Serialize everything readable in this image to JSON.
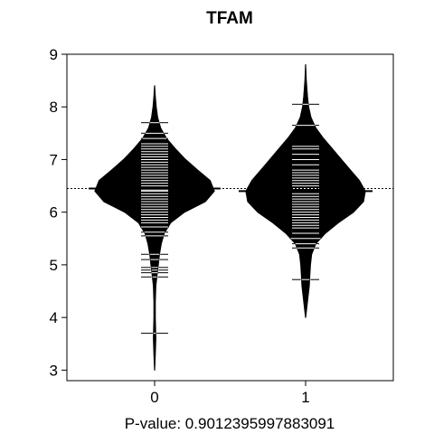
{
  "chart_data": {
    "type": "beanplot",
    "title": "TFAM",
    "xlabel": "P-value: 0.9012395997883091",
    "ylabel": "",
    "categories": [
      "0",
      "1"
    ],
    "ylim": [
      2.8,
      9.0
    ],
    "yticks": [
      3,
      4,
      5,
      6,
      7,
      8,
      9
    ],
    "overall_mean": 6.45,
    "colors": {
      "bean": "#000000",
      "lines": "#ffffff",
      "background": "#ffffff"
    },
    "series": [
      {
        "category": "0",
        "mean": 6.45,
        "density": [
          [
            3.0,
            0.0
          ],
          [
            3.3,
            0.01
          ],
          [
            3.6,
            0.02
          ],
          [
            3.8,
            0.015
          ],
          [
            4.0,
            0.01
          ],
          [
            4.3,
            0.01
          ],
          [
            4.6,
            0.02
          ],
          [
            4.8,
            0.04
          ],
          [
            5.0,
            0.06
          ],
          [
            5.2,
            0.08
          ],
          [
            5.4,
            0.11
          ],
          [
            5.6,
            0.16
          ],
          [
            5.8,
            0.27
          ],
          [
            6.0,
            0.5
          ],
          [
            6.2,
            0.85
          ],
          [
            6.4,
            1.0
          ],
          [
            6.6,
            0.93
          ],
          [
            6.8,
            0.72
          ],
          [
            7.0,
            0.52
          ],
          [
            7.2,
            0.35
          ],
          [
            7.4,
            0.2
          ],
          [
            7.6,
            0.1
          ],
          [
            7.8,
            0.05
          ],
          [
            8.0,
            0.025
          ],
          [
            8.2,
            0.01
          ],
          [
            8.4,
            0.0
          ]
        ],
        "observations": [
          3.7,
          4.77,
          4.85,
          4.9,
          4.95,
          5.1,
          5.2,
          5.55,
          5.62,
          5.72,
          5.8,
          5.85,
          5.9,
          5.95,
          6.0,
          6.05,
          6.1,
          6.15,
          6.2,
          6.25,
          6.3,
          6.35,
          6.4,
          6.42,
          6.45,
          6.5,
          6.55,
          6.6,
          6.65,
          6.7,
          6.75,
          6.8,
          6.85,
          6.9,
          6.95,
          7.0,
          7.05,
          7.1,
          7.15,
          7.2,
          7.25,
          7.3,
          7.4,
          7.5,
          7.7
        ]
      },
      {
        "category": "1",
        "mean": 6.4,
        "density": [
          [
            4.0,
            0.0
          ],
          [
            4.3,
            0.03
          ],
          [
            4.6,
            0.06
          ],
          [
            4.8,
            0.07
          ],
          [
            5.0,
            0.08
          ],
          [
            5.2,
            0.1
          ],
          [
            5.4,
            0.17
          ],
          [
            5.6,
            0.33
          ],
          [
            5.8,
            0.55
          ],
          [
            6.0,
            0.8
          ],
          [
            6.2,
            0.97
          ],
          [
            6.4,
            1.0
          ],
          [
            6.6,
            0.9
          ],
          [
            6.8,
            0.75
          ],
          [
            7.0,
            0.6
          ],
          [
            7.2,
            0.45
          ],
          [
            7.4,
            0.3
          ],
          [
            7.6,
            0.17
          ],
          [
            7.8,
            0.09
          ],
          [
            8.0,
            0.05
          ],
          [
            8.2,
            0.03
          ],
          [
            8.5,
            0.01
          ],
          [
            8.8,
            0.0
          ]
        ],
        "observations": [
          4.72,
          5.32,
          5.4,
          5.5,
          5.6,
          5.7,
          5.75,
          5.8,
          5.85,
          5.9,
          5.95,
          6.0,
          6.05,
          6.1,
          6.15,
          6.2,
          6.25,
          6.3,
          6.35,
          6.4,
          6.45,
          6.5,
          6.55,
          6.6,
          6.65,
          6.7,
          6.75,
          6.8,
          6.9,
          7.0,
          7.1,
          7.2,
          7.25,
          7.65,
          8.05
        ]
      }
    ]
  }
}
